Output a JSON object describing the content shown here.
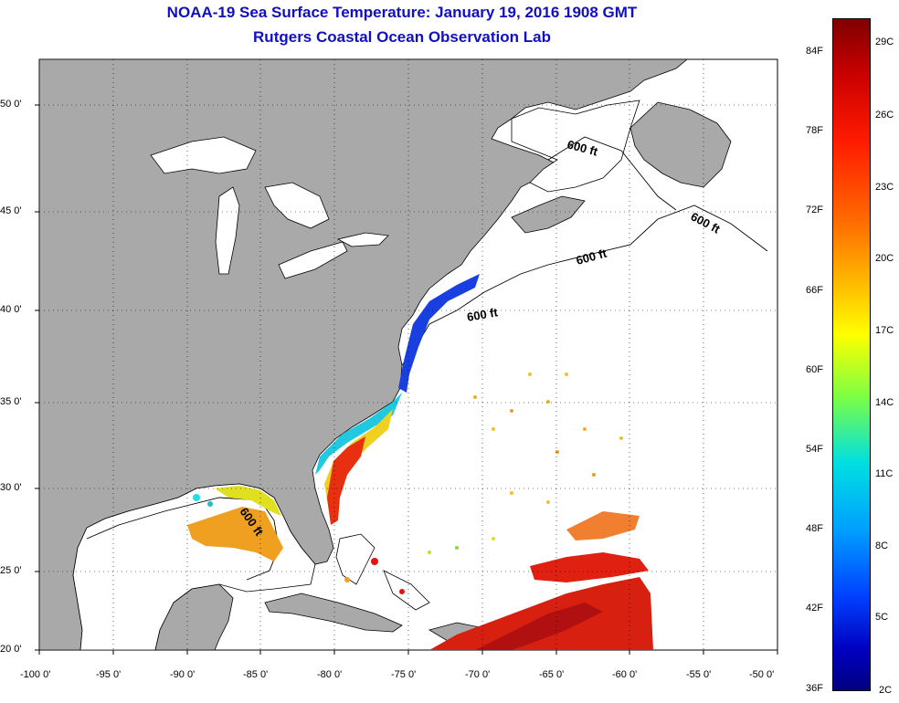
{
  "title": {
    "line1": "NOAA-19 Sea Surface Temperature:  January 19, 2016 1908 GMT",
    "line2": "Rutgers Coastal Ocean Observation Lab"
  },
  "map": {
    "lon_range": [
      -100,
      -50
    ],
    "lat_range": [
      20,
      52
    ],
    "lon_ticks": [
      "-100 0'",
      "-95 0'",
      "-90 0'",
      "-85 0'",
      "-80 0'",
      "-75 0'",
      "-70 0'",
      "-65 0'",
      "-60 0'",
      "-55 0'",
      "-50 0'"
    ],
    "lat_ticks": [
      "50 0'",
      "45 0'",
      "40 0'",
      "35 0'",
      "30 0'",
      "25 0'",
      "20 0'"
    ],
    "contour_labels": [
      "600 ft",
      "600 ft",
      "600 ft",
      "600 ft",
      "600 ft"
    ],
    "land_color": "#a9a9a9",
    "water_color": "#ffffff"
  },
  "colorbar": {
    "fahrenheit_labels": [
      "84F",
      "78F",
      "72F",
      "66F",
      "60F",
      "54F",
      "48F",
      "42F",
      "36F"
    ],
    "celsius_labels": [
      "29C",
      "26C",
      "23C",
      "20C",
      "17C",
      "14C",
      "11C",
      "8C",
      "5C",
      "2C"
    ]
  }
}
